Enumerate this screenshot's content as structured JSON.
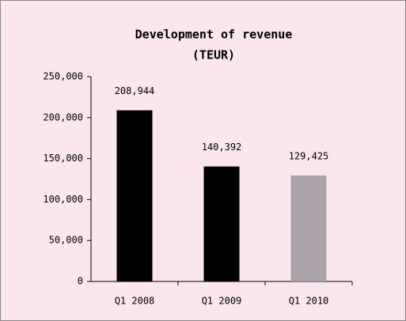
{
  "chart_data": {
    "type": "bar",
    "title": "Development of revenue",
    "subtitle": "(TEUR)",
    "categories": [
      "Q1 2008",
      "Q1 2009",
      "Q1 2010"
    ],
    "values": [
      208944,
      140392,
      129425
    ],
    "value_labels": [
      "208,944",
      "140,392",
      "129,425"
    ],
    "colors": [
      "#000000",
      "#000000",
      "#aba1a8"
    ],
    "ylim": [
      0,
      250000
    ],
    "yticks": [
      0,
      {
        "value": 50000,
        "label": "50,000"
      },
      {
        "value": 100000,
        "label": "100,000"
      },
      {
        "value": 150000,
        "label": "150,000"
      },
      {
        "value": 200000,
        "label": "200,000"
      },
      {
        "value": 250000,
        "label": "250,000"
      }
    ],
    "grid": false
  }
}
